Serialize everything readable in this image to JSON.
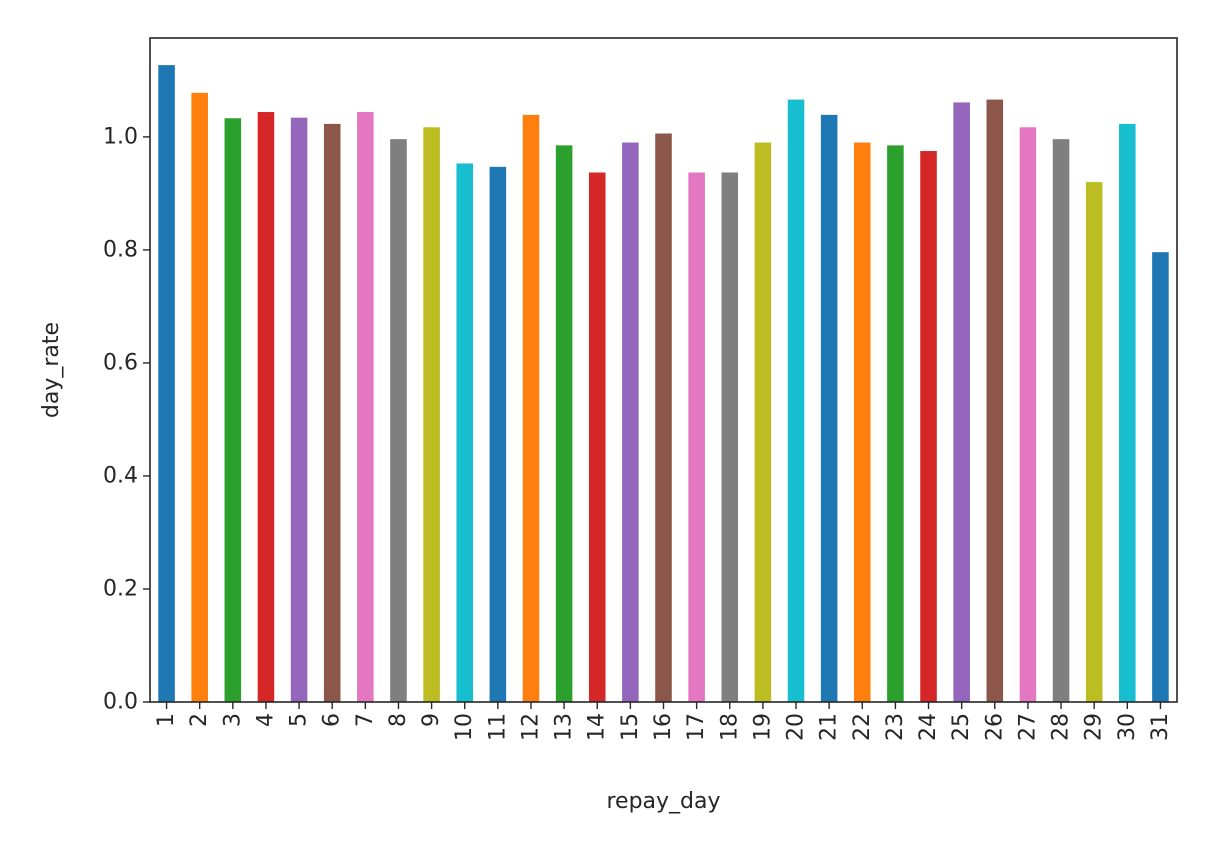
{
  "chart_data": {
    "type": "bar",
    "title": "",
    "xlabel": "repay_day",
    "ylabel": "day_rate",
    "ylim": [
      0,
      1.175
    ],
    "yticks": [
      "0.0",
      "0.2",
      "0.4",
      "0.6",
      "0.8",
      "1.0"
    ],
    "ytick_values": [
      0.0,
      0.2,
      0.4,
      0.6,
      0.8,
      1.0
    ],
    "categories": [
      "1",
      "2",
      "3",
      "4",
      "5",
      "6",
      "7",
      "8",
      "9",
      "10",
      "11",
      "12",
      "13",
      "14",
      "15",
      "16",
      "17",
      "18",
      "19",
      "20",
      "21",
      "22",
      "23",
      "24",
      "25",
      "26",
      "27",
      "28",
      "29",
      "30",
      "31"
    ],
    "values": [
      1.127,
      1.078,
      1.033,
      1.044,
      1.034,
      1.023,
      1.044,
      0.996,
      1.017,
      0.953,
      0.947,
      1.039,
      0.985,
      0.937,
      0.99,
      1.006,
      0.937,
      0.937,
      0.99,
      1.066,
      1.039,
      0.99,
      0.985,
      0.975,
      1.061,
      1.066,
      1.017,
      0.996,
      0.92,
      1.023,
      0.796
    ],
    "colors": [
      "#1f77b4",
      "#ff7f0e",
      "#2ca02c",
      "#d62728",
      "#9467bd",
      "#8c564b",
      "#e377c2",
      "#7f7f7f",
      "#bcbd22",
      "#17becf"
    ],
    "grid": false,
    "legend": "none"
  }
}
